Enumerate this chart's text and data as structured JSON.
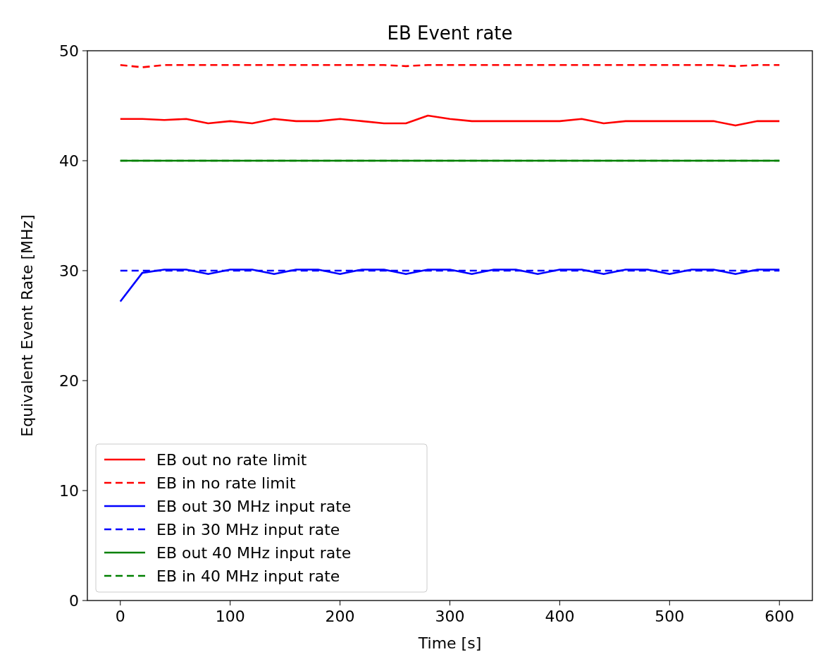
{
  "chart_data": {
    "type": "line",
    "title": "EB Event rate",
    "xlabel": "Time [s]",
    "ylabel": "Equivalent Event Rate [MHz]",
    "x": [
      0,
      20,
      40,
      60,
      80,
      100,
      120,
      140,
      160,
      180,
      200,
      220,
      240,
      260,
      280,
      300,
      320,
      340,
      360,
      380,
      400,
      420,
      440,
      460,
      480,
      500,
      520,
      540,
      560,
      580,
      600
    ],
    "xlim": [
      -30,
      630
    ],
    "xticks": [
      0,
      100,
      200,
      300,
      400,
      500,
      600
    ],
    "ylim": [
      0,
      50
    ],
    "yticks": [
      0,
      10,
      20,
      30,
      40,
      50
    ],
    "grid": false,
    "legend": "bottom left",
    "series": [
      {
        "name": "EB out no rate limit",
        "color": "#ff0000",
        "line_style": "solid",
        "values": [
          43.8,
          43.8,
          43.7,
          43.8,
          43.4,
          43.6,
          43.4,
          43.8,
          43.6,
          43.6,
          43.8,
          43.6,
          43.4,
          43.4,
          44.1,
          43.8,
          43.6,
          43.6,
          43.6,
          43.6,
          43.6,
          43.8,
          43.4,
          43.6,
          43.6,
          43.6,
          43.6,
          43.6,
          43.2,
          43.6,
          43.6
        ]
      },
      {
        "name": "EB in no rate limit",
        "color": "#ff0000",
        "line_style": "dashed",
        "values": [
          48.7,
          48.5,
          48.7,
          48.7,
          48.7,
          48.7,
          48.7,
          48.7,
          48.7,
          48.7,
          48.7,
          48.7,
          48.7,
          48.6,
          48.7,
          48.7,
          48.7,
          48.7,
          48.7,
          48.7,
          48.7,
          48.7,
          48.7,
          48.7,
          48.7,
          48.7,
          48.7,
          48.7,
          48.6,
          48.7,
          48.7
        ]
      },
      {
        "name": "EB out 30 MHz input rate",
        "color": "#0000ff",
        "line_style": "solid",
        "values": [
          27.2,
          29.8,
          30.1,
          30.1,
          29.7,
          30.1,
          30.1,
          29.7,
          30.1,
          30.1,
          29.7,
          30.1,
          30.1,
          29.7,
          30.1,
          30.1,
          29.7,
          30.1,
          30.1,
          29.7,
          30.1,
          30.1,
          29.7,
          30.1,
          30.1,
          29.7,
          30.1,
          30.1,
          29.7,
          30.1,
          30.1
        ]
      },
      {
        "name": "EB in 30 MHz input rate",
        "color": "#0000ff",
        "line_style": "dashed",
        "values": [
          30,
          30,
          30,
          30,
          30,
          30,
          30,
          30,
          30,
          30,
          30,
          30,
          30,
          30,
          30,
          30,
          30,
          30,
          30,
          30,
          30,
          30,
          30,
          30,
          30,
          30,
          30,
          30,
          30,
          30,
          30
        ]
      },
      {
        "name": "EB out 40 MHz input rate",
        "color": "#008000",
        "line_style": "solid",
        "values": [
          40,
          40,
          40,
          40,
          40,
          40,
          40,
          40,
          40,
          40,
          40,
          40,
          40,
          40,
          40,
          40,
          40,
          40,
          40,
          40,
          40,
          40,
          40,
          40,
          40,
          40,
          40,
          40,
          40,
          40,
          40
        ]
      },
      {
        "name": "EB in 40 MHz input rate",
        "color": "#008000",
        "line_style": "dashed",
        "values": [
          40,
          40,
          40,
          40,
          40,
          40,
          40,
          40,
          40,
          40,
          40,
          40,
          40,
          40,
          40,
          40,
          40,
          40,
          40,
          40,
          40,
          40,
          40,
          40,
          40,
          40,
          40,
          40,
          40,
          40,
          40
        ]
      }
    ]
  }
}
